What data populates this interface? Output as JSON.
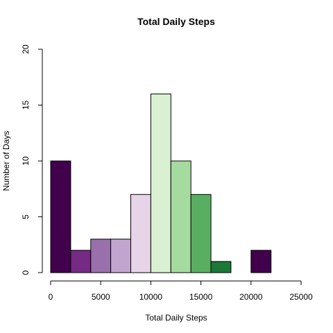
{
  "chart_data": {
    "type": "bar",
    "title": "Total Daily Steps",
    "xlabel": "Total Daily Steps",
    "ylabel": "Number of Days",
    "xlim": [
      0,
      25000
    ],
    "ylim": [
      0,
      20
    ],
    "xticks": [
      "0",
      "5000",
      "10000",
      "15000",
      "20000",
      "25000"
    ],
    "yticks": [
      "0",
      "5",
      "10",
      "15",
      "20"
    ],
    "bins": [
      {
        "start": 0,
        "end": 2000,
        "count": 10,
        "color": "#40004B"
      },
      {
        "start": 2000,
        "end": 4000,
        "count": 2,
        "color": "#762A83"
      },
      {
        "start": 4000,
        "end": 6000,
        "count": 3,
        "color": "#9970AB"
      },
      {
        "start": 6000,
        "end": 8000,
        "count": 3,
        "color": "#C2A5CF"
      },
      {
        "start": 8000,
        "end": 10000,
        "count": 7,
        "color": "#E7D4E8"
      },
      {
        "start": 10000,
        "end": 12000,
        "count": 16,
        "color": "#D9F0D3"
      },
      {
        "start": 12000,
        "end": 14000,
        "count": 10,
        "color": "#A6DBA0"
      },
      {
        "start": 14000,
        "end": 16000,
        "count": 7,
        "color": "#5AAE61"
      },
      {
        "start": 16000,
        "end": 18000,
        "count": 1,
        "color": "#1B7837"
      },
      {
        "start": 18000,
        "end": 20000,
        "count": 0,
        "color": "#00441B"
      },
      {
        "start": 20000,
        "end": 22000,
        "count": 2,
        "color": "#40004B"
      }
    ],
    "grid": false,
    "legend": "none"
  }
}
